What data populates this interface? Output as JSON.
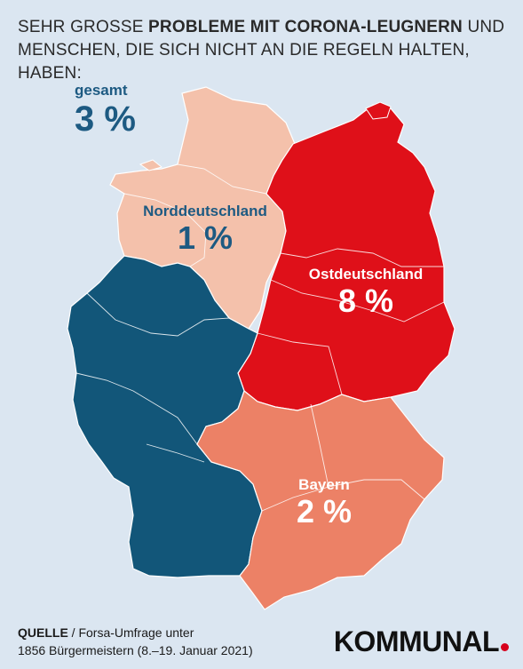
{
  "headline": {
    "part1": "SEHR GROSSE ",
    "bold": "PROBLEME MIT CORONA-LEUGNERN",
    "part2": " UND MENSCHEN, DIE SICH NICHT AN DIE REGELN HALTEN, HABEN:"
  },
  "overall": {
    "label": "gesamt",
    "value": "3 %"
  },
  "regions": {
    "nord": {
      "name": "Norddeutschland",
      "value": "1 %",
      "color": "#f4c1ab"
    },
    "ost": {
      "name": "Ostdeutschland",
      "value": "8 %",
      "color": "#df1019"
    },
    "west": {
      "name": "",
      "value": "",
      "color": "#125679"
    },
    "bayern": {
      "name": "Bayern",
      "value": "2 %",
      "color": "#ec8166"
    }
  },
  "colors": {
    "background": "#dbe6f1",
    "dark_blue_text": "#1d5a82",
    "white_text": "#ffffff"
  },
  "source": {
    "label": "QUELLE",
    "line1": " / Forsa-Umfrage unter",
    "line2": "1856 Bürgermeistern (8.–19. Januar 2021)"
  },
  "logo": {
    "text": "KOMMUNAL"
  }
}
